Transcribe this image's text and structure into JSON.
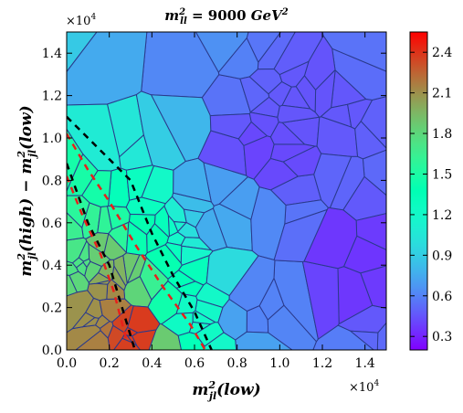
{
  "chart_data": {
    "type": "heatmap",
    "title_main": "m",
    "title_sup": "2",
    "title_sub": "ll",
    "title_value": " = 9000 ",
    "title_unit": "GeV",
    "title_unit_sup": "2",
    "x_axis": {
      "label_main": "m",
      "label_sup": "2",
      "label_sub": "jl",
      "label_arg": "(low)",
      "range": [
        0.0,
        1.5
      ],
      "ticks": [
        0.0,
        0.2,
        0.4,
        0.6,
        0.8,
        1.0,
        1.2,
        1.4
      ],
      "tick_labels": [
        "0.0",
        "0.2",
        "0.4",
        "0.6",
        "0.8",
        "1.0",
        "1.2",
        "1.4"
      ],
      "multiplier_base": "×10",
      "multiplier_exp": "4"
    },
    "y_axis": {
      "label_parts": [
        {
          "t": "m",
          "kind": "main"
        },
        {
          "t": "2",
          "kind": "sup"
        },
        {
          "t": "jl",
          "kind": "sub"
        },
        {
          "t": "(high) − ",
          "kind": "main"
        },
        {
          "t": "m",
          "kind": "main"
        },
        {
          "t": "2",
          "kind": "sup"
        },
        {
          "t": "jl",
          "kind": "sub"
        },
        {
          "t": "(low)",
          "kind": "main"
        }
      ],
      "range": [
        0.0,
        1.5
      ],
      "ticks": [
        0.0,
        0.2,
        0.4,
        0.6,
        0.8,
        1.0,
        1.2,
        1.4
      ],
      "tick_labels": [
        "0.0",
        "0.2",
        "0.4",
        "0.6",
        "0.8",
        "1.0",
        "1.2",
        "1.4"
      ],
      "multiplier_base": "×10",
      "multiplier_exp": "4"
    },
    "colorbar": {
      "range": [
        0.2,
        2.55
      ],
      "ticks": [
        0.3,
        0.6,
        0.9,
        1.2,
        1.5,
        1.8,
        2.1,
        2.4
      ],
      "tick_labels": [
        "0.3",
        "0.6",
        "0.9",
        "1.2",
        "1.5",
        "1.8",
        "2.1",
        "2.4"
      ],
      "colormap": "rainbow"
    },
    "field_description": "Voronoi cell tessellation colored by value; values high (1.5-2.5) near the lower-left band between the dashed curves, decreasing to ~0.3-0.6 toward upper-right",
    "cell_values_sample": [
      {
        "x": 0.12,
        "y": 0.18,
        "v": 2.1
      },
      {
        "x": 0.3,
        "y": 0.1,
        "v": 2.4
      },
      {
        "x": 0.25,
        "y": 0.25,
        "v": 2.2
      },
      {
        "x": 0.05,
        "y": 0.45,
        "v": 1.7
      },
      {
        "x": 0.18,
        "y": 0.45,
        "v": 1.9
      },
      {
        "x": 0.4,
        "y": 0.25,
        "v": 1.6
      },
      {
        "x": 0.5,
        "y": 0.35,
        "v": 1.4
      },
      {
        "x": 0.35,
        "y": 0.55,
        "v": 1.4
      },
      {
        "x": 0.1,
        "y": 0.75,
        "v": 1.5
      },
      {
        "x": 0.3,
        "y": 0.75,
        "v": 1.3
      },
      {
        "x": 0.6,
        "y": 0.2,
        "v": 1.2
      },
      {
        "x": 0.7,
        "y": 0.5,
        "v": 0.7
      },
      {
        "x": 0.9,
        "y": 0.2,
        "v": 0.6
      },
      {
        "x": 0.5,
        "y": 0.8,
        "v": 0.7
      },
      {
        "x": 0.2,
        "y": 1.05,
        "v": 1.0
      },
      {
        "x": 0.9,
        "y": 0.9,
        "v": 0.4
      },
      {
        "x": 1.2,
        "y": 1.2,
        "v": 0.45
      },
      {
        "x": 1.3,
        "y": 0.4,
        "v": 0.35
      },
      {
        "x": 0.4,
        "y": 1.3,
        "v": 0.6
      },
      {
        "x": 1.4,
        "y": 1.4,
        "v": 0.55
      }
    ],
    "overlay_curves": [
      {
        "style": "black-dashed",
        "points": [
          [
            0.0,
            1.1
          ],
          [
            0.15,
            0.95
          ],
          [
            0.3,
            0.8
          ],
          [
            0.4,
            0.55
          ],
          [
            0.5,
            0.35
          ],
          [
            0.6,
            0.18
          ],
          [
            0.68,
            0.0
          ]
        ]
      },
      {
        "style": "red-dashed",
        "points": [
          [
            0.0,
            1.02
          ],
          [
            0.1,
            0.85
          ],
          [
            0.2,
            0.7
          ],
          [
            0.32,
            0.5
          ],
          [
            0.45,
            0.3
          ],
          [
            0.58,
            0.12
          ],
          [
            0.65,
            0.0
          ]
        ]
      },
      {
        "style": "black-dashed",
        "points": [
          [
            0.0,
            0.88
          ],
          [
            0.1,
            0.6
          ],
          [
            0.2,
            0.4
          ],
          [
            0.26,
            0.2
          ],
          [
            0.32,
            0.0
          ]
        ]
      },
      {
        "style": "red-dashed",
        "points": [
          [
            0.0,
            0.82
          ],
          [
            0.08,
            0.62
          ],
          [
            0.16,
            0.45
          ],
          [
            0.22,
            0.28
          ],
          [
            0.28,
            0.05
          ]
        ]
      }
    ]
  }
}
